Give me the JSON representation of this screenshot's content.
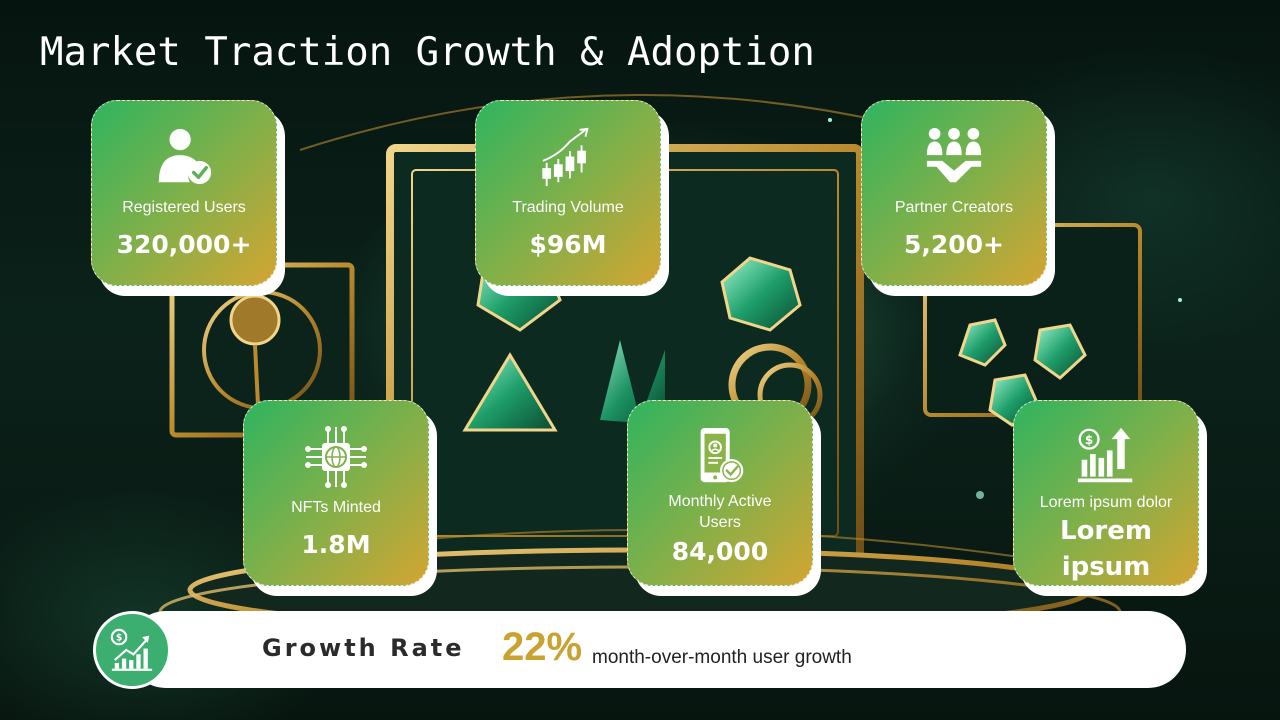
{
  "title": "Market Traction Growth & Adoption",
  "cards": [
    {
      "label": "Registered Users",
      "value": "320,000+",
      "icon": "user-check-icon"
    },
    {
      "label": "Trading Volume",
      "value": "$96M",
      "icon": "candlestick-chart-icon"
    },
    {
      "label": "Partner Creators",
      "value": "5,200+",
      "icon": "handshake-team-icon"
    },
    {
      "label": "NFTs Minted",
      "value": "1.8M",
      "icon": "chip-globe-icon"
    },
    {
      "label": "Monthly Active Users",
      "value": "84,000",
      "icon": "mobile-user-icon"
    },
    {
      "label": "Lorem ipsum dolor",
      "value": "Lorem ipsum",
      "icon": "money-growth-icon"
    }
  ],
  "growth": {
    "label": "Growth Rate",
    "value": "22%",
    "description": "month-over-month user growth",
    "icon": "money-growth-icon"
  },
  "colors": {
    "card_green": "#2fb45f",
    "card_gold": "#d4a532",
    "accent_gold": "#c9a230",
    "circle_green": "#3cae6f"
  }
}
